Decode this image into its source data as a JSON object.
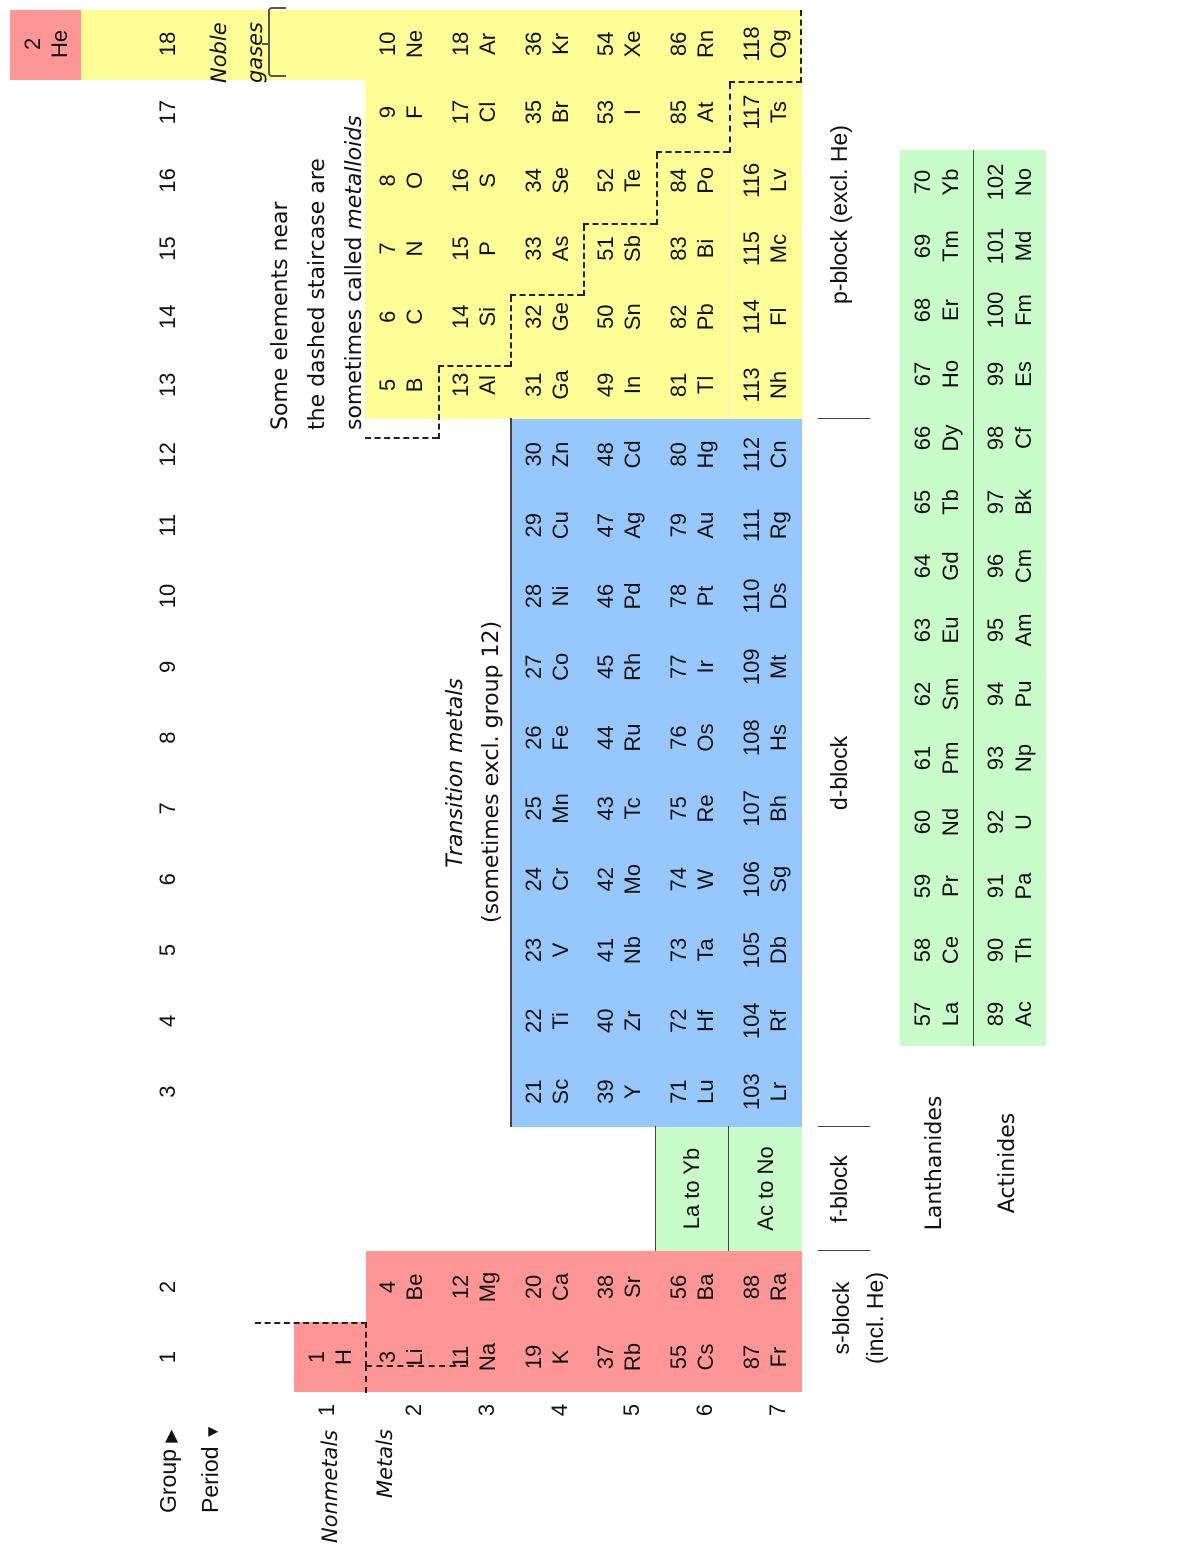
{
  "header": {
    "group_label": "Group",
    "period_label": "Period",
    "group_arrow": "▶",
    "period_arrow": "▼",
    "groups": [
      "1",
      "2",
      "3",
      "4",
      "5",
      "6",
      "7",
      "8",
      "9",
      "10",
      "11",
      "12",
      "13",
      "14",
      "15",
      "16",
      "17",
      "18"
    ],
    "periods": [
      "1",
      "2",
      "3",
      "4",
      "5",
      "6",
      "7"
    ]
  },
  "labels": {
    "nonmetals": "Nonmetals",
    "metals": "Metals",
    "noble_gases_line1": "Noble",
    "noble_gases_line2": "gases",
    "metalloid_note_line1": "Some elements near",
    "metalloid_note_line2": "the dashed staircase are",
    "metalloid_note_line3_prefix": "sometimes called ",
    "metalloid_note_line3_em": "metalloids",
    "transition_title": "Transition metals",
    "transition_sub": "(sometimes excl. group 12)",
    "lanthanides": "Lanthanides",
    "actinides": "Actinides",
    "la_to_yb": "La to Yb",
    "ac_to_no": "Ac to No",
    "s_block_line1": "s-block",
    "s_block_line2": "(incl. He)",
    "f_block": "f-block",
    "d_block": "d-block",
    "p_block": "p-block (excl. He)"
  },
  "colors": {
    "s_block": "#fe9696",
    "p_block": "#fefe96",
    "d_block": "#96c8fe",
    "f_block": "#c8fcc8"
  },
  "elements": {
    "H": {
      "num": "1",
      "sym": "H"
    },
    "He": {
      "num": "2",
      "sym": "He"
    },
    "Li": {
      "num": "3",
      "sym": "Li"
    },
    "Be": {
      "num": "4",
      "sym": "Be"
    },
    "B": {
      "num": "5",
      "sym": "B"
    },
    "C": {
      "num": "6",
      "sym": "C"
    },
    "N": {
      "num": "7",
      "sym": "N"
    },
    "O": {
      "num": "8",
      "sym": "O"
    },
    "F": {
      "num": "9",
      "sym": "F"
    },
    "Ne": {
      "num": "10",
      "sym": "Ne"
    },
    "Na": {
      "num": "11",
      "sym": "Na"
    },
    "Mg": {
      "num": "12",
      "sym": "Mg"
    },
    "Al": {
      "num": "13",
      "sym": "Al"
    },
    "Si": {
      "num": "14",
      "sym": "Si"
    },
    "P": {
      "num": "15",
      "sym": "P"
    },
    "S": {
      "num": "16",
      "sym": "S"
    },
    "Cl": {
      "num": "17",
      "sym": "Cl"
    },
    "Ar": {
      "num": "18",
      "sym": "Ar"
    },
    "K": {
      "num": "19",
      "sym": "K"
    },
    "Ca": {
      "num": "20",
      "sym": "Ca"
    },
    "Sc": {
      "num": "21",
      "sym": "Sc"
    },
    "Ti": {
      "num": "22",
      "sym": "Ti"
    },
    "V": {
      "num": "23",
      "sym": "V"
    },
    "Cr": {
      "num": "24",
      "sym": "Cr"
    },
    "Mn": {
      "num": "25",
      "sym": "Mn"
    },
    "Fe": {
      "num": "26",
      "sym": "Fe"
    },
    "Co": {
      "num": "27",
      "sym": "Co"
    },
    "Ni": {
      "num": "28",
      "sym": "Ni"
    },
    "Cu": {
      "num": "29",
      "sym": "Cu"
    },
    "Zn": {
      "num": "30",
      "sym": "Zn"
    },
    "Ga": {
      "num": "31",
      "sym": "Ga"
    },
    "Ge": {
      "num": "32",
      "sym": "Ge"
    },
    "As": {
      "num": "33",
      "sym": "As"
    },
    "Se": {
      "num": "34",
      "sym": "Se"
    },
    "Br": {
      "num": "35",
      "sym": "Br"
    },
    "Kr": {
      "num": "36",
      "sym": "Kr"
    },
    "Rb": {
      "num": "37",
      "sym": "Rb"
    },
    "Sr": {
      "num": "38",
      "sym": "Sr"
    },
    "Y": {
      "num": "39",
      "sym": "Y"
    },
    "Zr": {
      "num": "40",
      "sym": "Zr"
    },
    "Nb": {
      "num": "41",
      "sym": "Nb"
    },
    "Mo": {
      "num": "42",
      "sym": "Mo"
    },
    "Tc": {
      "num": "43",
      "sym": "Tc"
    },
    "Ru": {
      "num": "44",
      "sym": "Ru"
    },
    "Rh": {
      "num": "45",
      "sym": "Rh"
    },
    "Pd": {
      "num": "46",
      "sym": "Pd"
    },
    "Ag": {
      "num": "47",
      "sym": "Ag"
    },
    "Cd": {
      "num": "48",
      "sym": "Cd"
    },
    "In": {
      "num": "49",
      "sym": "In"
    },
    "Sn": {
      "num": "50",
      "sym": "Sn"
    },
    "Sb": {
      "num": "51",
      "sym": "Sb"
    },
    "Te": {
      "num": "52",
      "sym": "Te"
    },
    "I": {
      "num": "53",
      "sym": "I"
    },
    "Xe": {
      "num": "54",
      "sym": "Xe"
    },
    "Cs": {
      "num": "55",
      "sym": "Cs"
    },
    "Ba": {
      "num": "56",
      "sym": "Ba"
    },
    "La": {
      "num": "57",
      "sym": "La"
    },
    "Ce": {
      "num": "58",
      "sym": "Ce"
    },
    "Pr": {
      "num": "59",
      "sym": "Pr"
    },
    "Nd": {
      "num": "60",
      "sym": "Nd"
    },
    "Pm": {
      "num": "61",
      "sym": "Pm"
    },
    "Sm": {
      "num": "62",
      "sym": "Sm"
    },
    "Eu": {
      "num": "63",
      "sym": "Eu"
    },
    "Gd": {
      "num": "64",
      "sym": "Gd"
    },
    "Tb": {
      "num": "65",
      "sym": "Tb"
    },
    "Dy": {
      "num": "66",
      "sym": "Dy"
    },
    "Ho": {
      "num": "67",
      "sym": "Ho"
    },
    "Er": {
      "num": "68",
      "sym": "Er"
    },
    "Tm": {
      "num": "69",
      "sym": "Tm"
    },
    "Yb": {
      "num": "70",
      "sym": "Yb"
    },
    "Lu": {
      "num": "71",
      "sym": "Lu"
    },
    "Hf": {
      "num": "72",
      "sym": "Hf"
    },
    "Ta": {
      "num": "73",
      "sym": "Ta"
    },
    "W": {
      "num": "74",
      "sym": "W"
    },
    "Re": {
      "num": "75",
      "sym": "Re"
    },
    "Os": {
      "num": "76",
      "sym": "Os"
    },
    "Ir": {
      "num": "77",
      "sym": "Ir"
    },
    "Pt": {
      "num": "78",
      "sym": "Pt"
    },
    "Au": {
      "num": "79",
      "sym": "Au"
    },
    "Hg": {
      "num": "80",
      "sym": "Hg"
    },
    "Tl": {
      "num": "81",
      "sym": "Tl"
    },
    "Pb": {
      "num": "82",
      "sym": "Pb"
    },
    "Bi": {
      "num": "83",
      "sym": "Bi"
    },
    "Po": {
      "num": "84",
      "sym": "Po"
    },
    "At": {
      "num": "85",
      "sym": "At"
    },
    "Rn": {
      "num": "86",
      "sym": "Rn"
    },
    "Fr": {
      "num": "87",
      "sym": "Fr"
    },
    "Ra": {
      "num": "88",
      "sym": "Ra"
    },
    "Ac": {
      "num": "89",
      "sym": "Ac"
    },
    "Th": {
      "num": "90",
      "sym": "Th"
    },
    "Pa": {
      "num": "91",
      "sym": "Pa"
    },
    "U": {
      "num": "92",
      "sym": "U"
    },
    "Np": {
      "num": "93",
      "sym": "Np"
    },
    "Pu": {
      "num": "94",
      "sym": "Pu"
    },
    "Am": {
      "num": "95",
      "sym": "Am"
    },
    "Cm": {
      "num": "96",
      "sym": "Cm"
    },
    "Bk": {
      "num": "97",
      "sym": "Bk"
    },
    "Cf": {
      "num": "98",
      "sym": "Cf"
    },
    "Es": {
      "num": "99",
      "sym": "Es"
    },
    "Fm": {
      "num": "100",
      "sym": "Fm"
    },
    "Md": {
      "num": "101",
      "sym": "Md"
    },
    "No": {
      "num": "102",
      "sym": "No"
    },
    "Lr": {
      "num": "103",
      "sym": "Lr"
    },
    "Rf": {
      "num": "104",
      "sym": "Rf"
    },
    "Db": {
      "num": "105",
      "sym": "Db"
    },
    "Sg": {
      "num": "106",
      "sym": "Sg"
    },
    "Bh": {
      "num": "107",
      "sym": "Bh"
    },
    "Hs": {
      "num": "108",
      "sym": "Hs"
    },
    "Mt": {
      "num": "109",
      "sym": "Mt"
    },
    "Ds": {
      "num": "110",
      "sym": "Ds"
    },
    "Rg": {
      "num": "111",
      "sym": "Rg"
    },
    "Cn": {
      "num": "112",
      "sym": "Cn"
    },
    "Nh": {
      "num": "113",
      "sym": "Nh"
    },
    "Fl": {
      "num": "114",
      "sym": "Fl"
    },
    "Mc": {
      "num": "115",
      "sym": "Mc"
    },
    "Lv": {
      "num": "116",
      "sym": "Lv"
    },
    "Ts": {
      "num": "117",
      "sym": "Ts"
    },
    "Og": {
      "num": "118",
      "sym": "Og"
    }
  },
  "layout": {
    "main_table": [
      [
        "H",
        null,
        null,
        null,
        null,
        null,
        null,
        null,
        null,
        null,
        null,
        null,
        null,
        null,
        null,
        null,
        null,
        "He"
      ],
      [
        "Li",
        "Be",
        null,
        null,
        null,
        null,
        null,
        null,
        null,
        null,
        null,
        null,
        "B",
        "C",
        "N",
        "O",
        "F",
        "Ne"
      ],
      [
        "Na",
        "Mg",
        null,
        null,
        null,
        null,
        null,
        null,
        null,
        null,
        null,
        null,
        "Al",
        "Si",
        "P",
        "S",
        "Cl",
        "Ar"
      ],
      [
        "K",
        "Ca",
        "Sc",
        "Ti",
        "V",
        "Cr",
        "Mn",
        "Fe",
        "Co",
        "Ni",
        "Cu",
        "Zn",
        "Ga",
        "Ge",
        "As",
        "Se",
        "Br",
        "Kr"
      ],
      [
        "Rb",
        "Sr",
        "Y",
        "Zr",
        "Nb",
        "Mo",
        "Tc",
        "Ru",
        "Rh",
        "Pd",
        "Ag",
        "Cd",
        "In",
        "Sn",
        "Sb",
        "Te",
        "I",
        "Xe"
      ],
      [
        "Cs",
        "Ba",
        "Lu",
        "Hf",
        "Ta",
        "W",
        "Re",
        "Os",
        "Ir",
        "Pt",
        "Au",
        "Hg",
        "Tl",
        "Pb",
        "Bi",
        "Po",
        "At",
        "Rn"
      ],
      [
        "Fr",
        "Ra",
        "Lr",
        "Rf",
        "Db",
        "Sg",
        "Bh",
        "Hs",
        "Mt",
        "Ds",
        "Rg",
        "Cn",
        "Nh",
        "Fl",
        "Mc",
        "Lv",
        "Ts",
        "Og"
      ]
    ],
    "lanthanides": [
      "La",
      "Ce",
      "Pr",
      "Nd",
      "Pm",
      "Sm",
      "Eu",
      "Gd",
      "Tb",
      "Dy",
      "Ho",
      "Er",
      "Tm",
      "Yb"
    ],
    "actinides": [
      "Ac",
      "Th",
      "Pa",
      "U",
      "Np",
      "Pu",
      "Am",
      "Cm",
      "Bk",
      "Cf",
      "Es",
      "Fm",
      "Md",
      "No"
    ]
  }
}
